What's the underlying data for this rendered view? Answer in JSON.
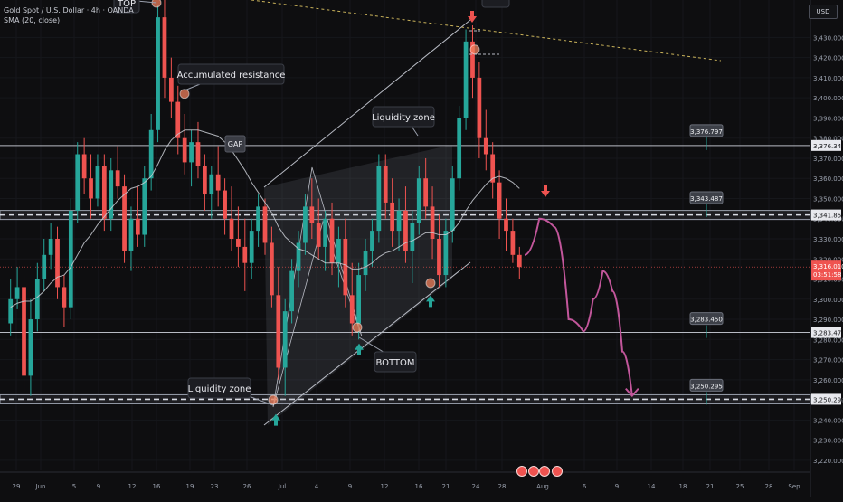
{
  "chart_data": {
    "type": "candlestick",
    "title": "Gold Spot / U.S. Dollar · 4h · OANDA",
    "indicator": "SMA (20, close)",
    "currency": "USD",
    "ylim": [
      3215,
      3445
    ],
    "y_ticks": [
      3220,
      3230,
      3240,
      3250,
      3260,
      3270,
      3280,
      3290,
      3300,
      3310,
      3320,
      3330,
      3340,
      3350,
      3360,
      3370,
      3380,
      3390,
      3400,
      3410,
      3420,
      3430
    ],
    "x_ticks": [
      "29",
      "Jun",
      "5",
      "9",
      "12",
      "16",
      "19",
      "23",
      "26",
      "Jul",
      "4",
      "9",
      "12",
      "16",
      "21",
      "24",
      "28",
      "Aug",
      "6",
      "9",
      "14",
      "18",
      "21",
      "25",
      "28",
      "Sep"
    ],
    "last_price": "3,316.010",
    "countdown": "03:51:58",
    "horizontal_levels": [
      {
        "value": 3376.344,
        "label": "3,376.344",
        "style": "solid"
      },
      {
        "value": 3341.853,
        "label": "3,341.853",
        "style": "dashed"
      },
      {
        "value": 3283.478,
        "label": "3,283.478",
        "style": "solid"
      },
      {
        "value": 3250.295,
        "label": "3,250.295",
        "style": "dashed"
      }
    ],
    "level_callouts": [
      "3,376.797",
      "3,343.487",
      "3,283.450",
      "3,250.295"
    ],
    "annotations": [
      "TOP",
      "Accumulated resistance",
      "GAP",
      "Liquidity zone",
      "Liquidity zone",
      "BOTTOM"
    ],
    "candles": [
      [
        3288,
        3310,
        3282,
        3300
      ],
      [
        3300,
        3316,
        3295,
        3306
      ],
      [
        3306,
        3312,
        3248,
        3262
      ],
      [
        3262,
        3300,
        3252,
        3290
      ],
      [
        3290,
        3318,
        3284,
        3310
      ],
      [
        3310,
        3330,
        3304,
        3322
      ],
      [
        3322,
        3338,
        3315,
        3330
      ],
      [
        3330,
        3336,
        3300,
        3306
      ],
      [
        3306,
        3312,
        3286,
        3296
      ],
      [
        3296,
        3350,
        3290,
        3344
      ],
      [
        3344,
        3378,
        3338,
        3372
      ],
      [
        3372,
        3380,
        3352,
        3360
      ],
      [
        3360,
        3372,
        3340,
        3350
      ],
      [
        3350,
        3372,
        3346,
        3366
      ],
      [
        3366,
        3372,
        3334,
        3340
      ],
      [
        3340,
        3370,
        3334,
        3364
      ],
      [
        3364,
        3376,
        3350,
        3356
      ],
      [
        3356,
        3362,
        3318,
        3324
      ],
      [
        3324,
        3346,
        3314,
        3340
      ],
      [
        3340,
        3356,
        3326,
        3332
      ],
      [
        3332,
        3366,
        3326,
        3360
      ],
      [
        3360,
        3392,
        3354,
        3384
      ],
      [
        3384,
        3446,
        3378,
        3440
      ],
      [
        3440,
        3452,
        3400,
        3410
      ],
      [
        3410,
        3420,
        3390,
        3398
      ],
      [
        3398,
        3406,
        3372,
        3380
      ],
      [
        3380,
        3392,
        3362,
        3368
      ],
      [
        3368,
        3384,
        3356,
        3378
      ],
      [
        3378,
        3388,
        3360,
        3366
      ],
      [
        3366,
        3372,
        3344,
        3352
      ],
      [
        3352,
        3366,
        3340,
        3362
      ],
      [
        3362,
        3376,
        3346,
        3354
      ],
      [
        3354,
        3360,
        3332,
        3340
      ],
      [
        3340,
        3356,
        3324,
        3330
      ],
      [
        3330,
        3346,
        3316,
        3326
      ],
      [
        3326,
        3340,
        3304,
        3318
      ],
      [
        3318,
        3340,
        3310,
        3334
      ],
      [
        3334,
        3352,
        3326,
        3346
      ],
      [
        3346,
        3350,
        3322,
        3328
      ],
      [
        3328,
        3336,
        3296,
        3302
      ],
      [
        3302,
        3316,
        3260,
        3266
      ],
      [
        3266,
        3300,
        3252,
        3294
      ],
      [
        3294,
        3320,
        3288,
        3314
      ],
      [
        3314,
        3334,
        3306,
        3328
      ],
      [
        3328,
        3352,
        3322,
        3346
      ],
      [
        3346,
        3360,
        3330,
        3338
      ],
      [
        3338,
        3350,
        3320,
        3326
      ],
      [
        3326,
        3344,
        3314,
        3340
      ],
      [
        3340,
        3348,
        3312,
        3318
      ],
      [
        3318,
        3336,
        3306,
        3330
      ],
      [
        3330,
        3340,
        3296,
        3302
      ],
      [
        3302,
        3318,
        3282,
        3288
      ],
      [
        3288,
        3318,
        3280,
        3312
      ],
      [
        3312,
        3330,
        3304,
        3324
      ],
      [
        3324,
        3340,
        3316,
        3334
      ],
      [
        3334,
        3372,
        3328,
        3366
      ],
      [
        3366,
        3372,
        3340,
        3348
      ],
      [
        3348,
        3360,
        3326,
        3334
      ],
      [
        3334,
        3350,
        3324,
        3344
      ],
      [
        3344,
        3356,
        3318,
        3324
      ],
      [
        3324,
        3344,
        3308,
        3338
      ],
      [
        3338,
        3366,
        3332,
        3360
      ],
      [
        3360,
        3370,
        3340,
        3346
      ],
      [
        3346,
        3356,
        3320,
        3330
      ],
      [
        3330,
        3342,
        3306,
        3312
      ],
      [
        3312,
        3340,
        3306,
        3334
      ],
      [
        3334,
        3366,
        3328,
        3360
      ],
      [
        3360,
        3396,
        3354,
        3390
      ],
      [
        3390,
        3434,
        3384,
        3428
      ],
      [
        3428,
        3436,
        3400,
        3410
      ],
      [
        3410,
        3418,
        3370,
        3380
      ],
      [
        3380,
        3394,
        3364,
        3372
      ],
      [
        3372,
        3378,
        3350,
        3358
      ],
      [
        3358,
        3364,
        3330,
        3340
      ],
      [
        3340,
        3350,
        3324,
        3334
      ],
      [
        3334,
        3340,
        3318,
        3322
      ],
      [
        3322,
        3326,
        3310,
        3316
      ]
    ],
    "sma_20": [
      3296,
      3298,
      3299,
      3299,
      3301,
      3304,
      3308,
      3311,
      3312,
      3316,
      3322,
      3328,
      3332,
      3337,
      3341,
      3345,
      3349,
      3352,
      3355,
      3356,
      3358,
      3361,
      3367,
      3374,
      3379,
      3382,
      3384,
      3384,
      3384,
      3383,
      3382,
      3381,
      3378,
      3374,
      3369,
      3364,
      3358,
      3353,
      3348,
      3343,
      3336,
      3331,
      3328,
      3325,
      3324,
      3322,
      3320,
      3318,
      3318,
      3318,
      3317,
      3315,
      3315,
      3316,
      3318,
      3321,
      3323,
      3324,
      3326,
      3328,
      3329,
      3331,
      3333,
      3333,
      3332,
      3332,
      3334,
      3338,
      3344,
      3349,
      3353,
      3357,
      3360,
      3361,
      3360,
      3358,
      3355
    ],
    "projection_path": [
      [
        0,
        3322
      ],
      [
        3,
        3340
      ],
      [
        6,
        3336
      ],
      [
        9,
        3290
      ],
      [
        12,
        3284
      ],
      [
        14,
        3300
      ],
      [
        16,
        3314
      ],
      [
        18,
        3304
      ],
      [
        20,
        3274
      ],
      [
        22,
        3252
      ]
    ]
  }
}
